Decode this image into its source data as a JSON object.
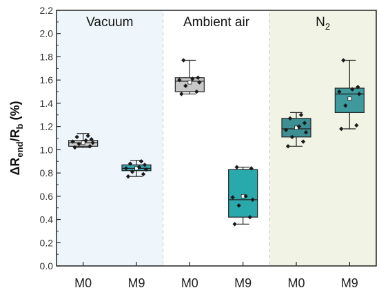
{
  "chart_data": {
    "type": "box",
    "ylabel": {
      "main": "ΔR",
      "sub1": "end",
      "mid": "/R",
      "sub2": "b",
      "tail": " (%)"
    },
    "ylim": [
      0.0,
      2.2
    ],
    "y_ticks": [
      "0.0",
      "0.2",
      "0.4",
      "0.6",
      "0.8",
      "1.0",
      "1.2",
      "1.4",
      "1.6",
      "1.8",
      "2.0",
      "2.2"
    ],
    "groups": [
      {
        "label": "Vacuum",
        "background": "#eef6fb"
      },
      {
        "label": "Ambient air",
        "background": "#ffffff"
      },
      {
        "label": "N",
        "label_sub": "2",
        "background": "#f1f3e4"
      }
    ],
    "categories": [
      "M0",
      "M9",
      "M0",
      "M9",
      "M0",
      "M9"
    ],
    "boxes": [
      {
        "group": 0,
        "label": "M0",
        "color": "#cfcfcf",
        "q1": 1.03,
        "median": 1.06,
        "q3": 1.08,
        "mean": 1.06,
        "whisker_low": 1.02,
        "whisker_high": 1.14,
        "points": [
          1.02,
          1.03,
          1.05,
          1.06,
          1.07,
          1.08,
          1.09,
          1.11,
          1.12
        ]
      },
      {
        "group": 0,
        "label": "M9",
        "color": "#3aa8b0",
        "q1": 0.82,
        "median": 0.84,
        "q3": 0.87,
        "mean": 0.84,
        "whisker_low": 0.77,
        "whisker_high": 0.91,
        "points": [
          0.77,
          0.79,
          0.81,
          0.83,
          0.84,
          0.85,
          0.87,
          0.88,
          0.9
        ]
      },
      {
        "group": 1,
        "label": "M0",
        "color": "#c8c8c8",
        "q1": 1.5,
        "median": 1.59,
        "q3": 1.62,
        "mean": 1.58,
        "whisker_low": 1.48,
        "whisker_high": 1.77,
        "points": [
          1.48,
          1.5,
          1.55,
          1.58,
          1.6,
          1.61,
          1.62,
          1.77
        ]
      },
      {
        "group": 1,
        "label": "M9",
        "color": "#2aa9ad",
        "q1": 0.42,
        "median": 0.57,
        "q3": 0.83,
        "mean": 0.6,
        "whisker_low": 0.36,
        "whisker_high": 0.85,
        "points": [
          0.36,
          0.42,
          0.52,
          0.57,
          0.59,
          0.6,
          0.84,
          0.85
        ]
      },
      {
        "group": 2,
        "label": "M0",
        "color": "#3c8f92",
        "q1": 1.11,
        "median": 1.18,
        "q3": 1.27,
        "mean": 1.19,
        "whisker_low": 1.03,
        "whisker_high": 1.32,
        "points": [
          1.03,
          1.07,
          1.11,
          1.15,
          1.17,
          1.2,
          1.23,
          1.27,
          1.3
        ]
      },
      {
        "group": 2,
        "label": "M9",
        "color": "#3e9a9c",
        "q1": 1.32,
        "median": 1.48,
        "q3": 1.53,
        "mean": 1.44,
        "whisker_low": 1.18,
        "whisker_high": 1.77,
        "points": [
          1.18,
          1.21,
          1.38,
          1.48,
          1.5,
          1.52,
          1.54,
          1.77
        ]
      }
    ]
  }
}
